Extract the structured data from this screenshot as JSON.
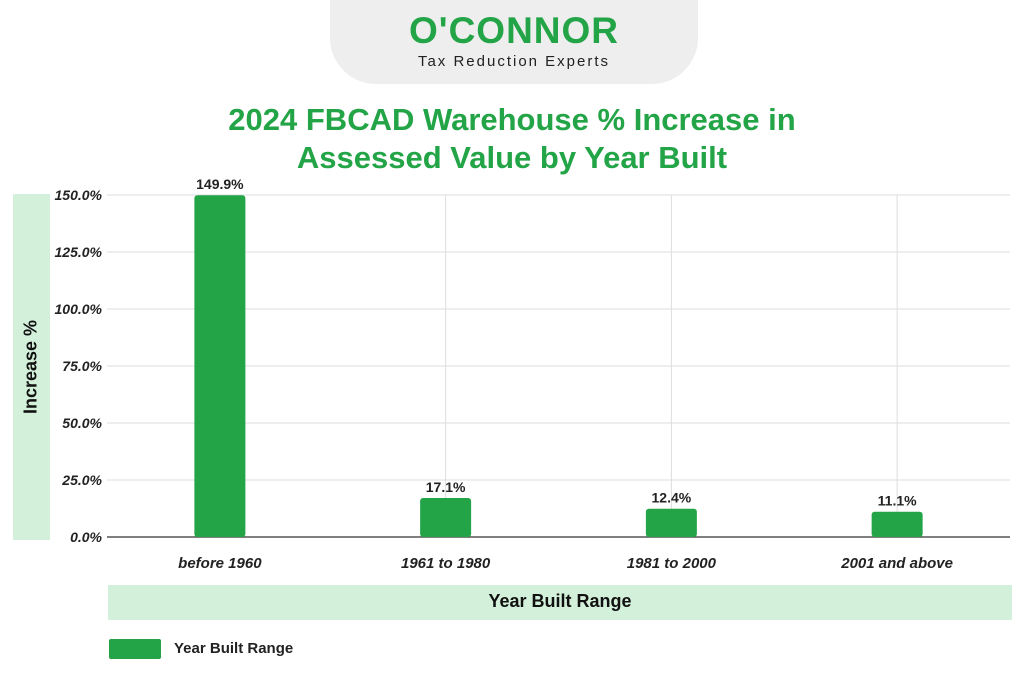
{
  "brand": {
    "name": "O'CONNOR",
    "tagline": "Tax Reduction Experts"
  },
  "colors": {
    "accent": "#22a447",
    "band": "#d3f0da",
    "grid": "#dddddd",
    "text": "#222222"
  },
  "chart_data": {
    "type": "bar",
    "title": "2024 FBCAD Warehouse % Increase in Assessed Value by Year Built",
    "title_lines": [
      "2024 FBCAD Warehouse % Increase in",
      "Assessed Value by Year Built"
    ],
    "xlabel": "Year Built Range",
    "ylabel": "Increase %",
    "categories": [
      "before 1960",
      "1961 to 1980",
      "1981 to 2000",
      "2001 and above"
    ],
    "series": [
      {
        "name": "Year Built Range",
        "values": [
          149.9,
          17.1,
          12.4,
          11.1
        ]
      }
    ],
    "value_labels": [
      "149.9%",
      "17.1%",
      "12.4%",
      "11.1%"
    ],
    "ylim": [
      0,
      150
    ],
    "yticks": [
      0,
      25,
      50,
      75,
      100,
      125,
      150
    ],
    "ytick_labels": [
      "0.0%",
      "25.0%",
      "50.0%",
      "75.0%",
      "100.0%",
      "125.0%",
      "150.0%"
    ],
    "grid": true,
    "legend_position": "bottom-left"
  }
}
